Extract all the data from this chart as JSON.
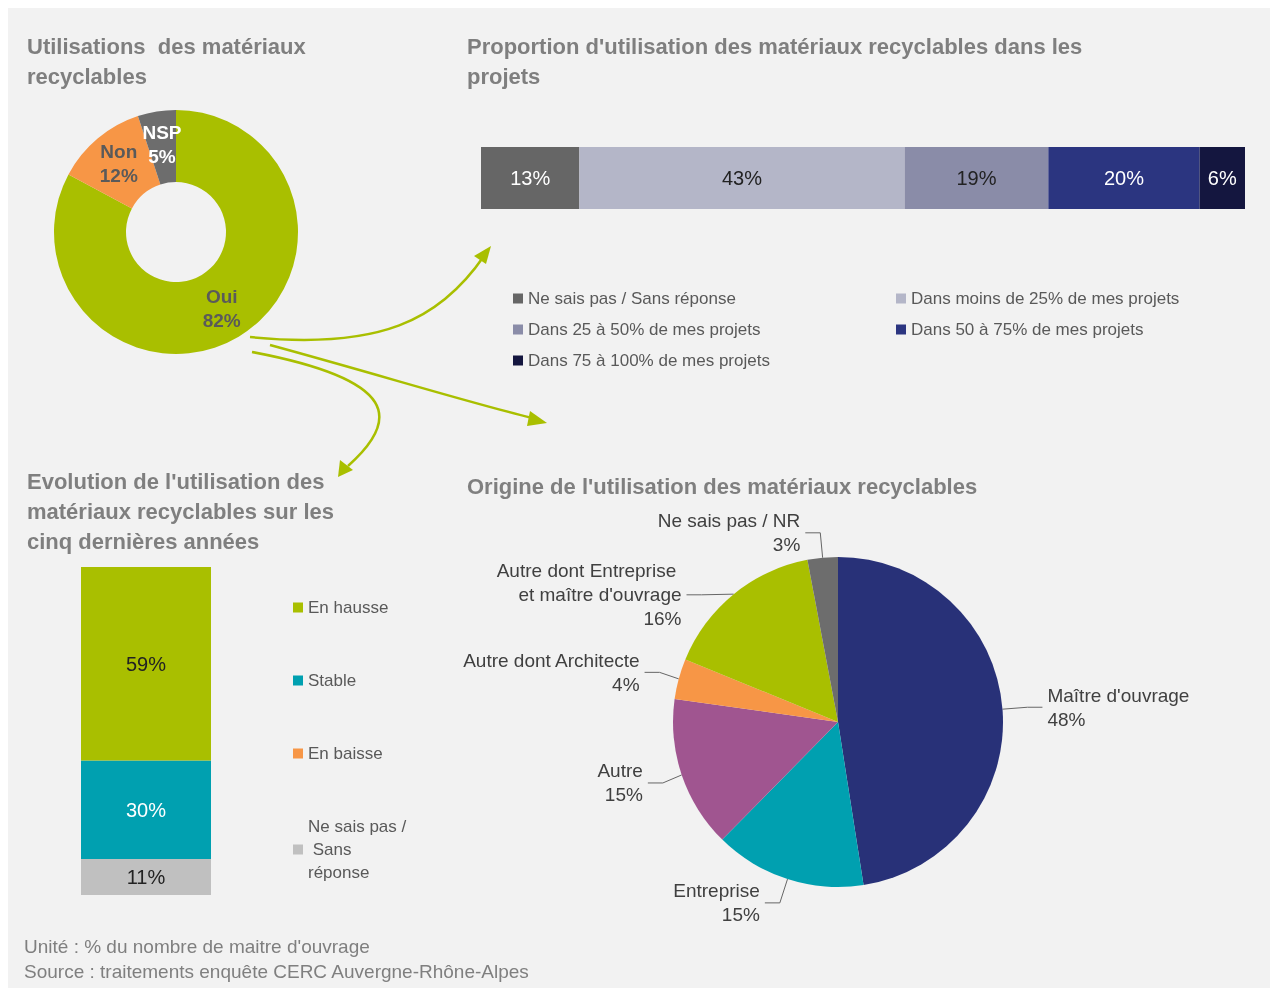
{
  "chart_data": [
    {
      "type": "donut",
      "title": "Utilisations  des matériaux recyclables",
      "categories": [
        "Oui",
        "Non",
        "NSP"
      ],
      "values": [
        82,
        12,
        5
      ],
      "colors": [
        "#a9bf00",
        "#f79646",
        "#6d6d6d"
      ],
      "value_labels": [
        "82%",
        "12%",
        "5%"
      ]
    },
    {
      "type": "bar",
      "title": "Proportion d'utilisation des matériaux recyclables dans les projets",
      "orientation": "horizontal",
      "stacked": true,
      "categories": [
        null
      ],
      "xlim": [
        0,
        101
      ],
      "tick_labels": false,
      "legend": "bottom",
      "series": [
        {
          "name": "Ne sais pas / Sans réponse",
          "color": "#666666",
          "values": [
            13
          ],
          "value_labels": [
            "13%"
          ]
        },
        {
          "name": "Dans moins de 25% de mes projets",
          "color": "#b4b6c8",
          "values": [
            43
          ],
          "value_labels": [
            "43%"
          ]
        },
        {
          "name": "Dans 25 à 50% de mes projets",
          "color": "#8a8ca8",
          "values": [
            19
          ],
          "value_labels": [
            "19%"
          ]
        },
        {
          "name": "Dans 50 à 75% de mes projets",
          "color": "#2b3580",
          "values": [
            20
          ],
          "value_labels": [
            "20%"
          ]
        },
        {
          "name": "Dans 75 à 100% de mes projets",
          "color": "#14163f",
          "values": [
            6
          ],
          "value_labels": [
            "6%"
          ]
        }
      ]
    },
    {
      "type": "bar",
      "title": "Evolution de l'utilisation des matériaux recyclables sur les cinq dernières années",
      "stacked": true,
      "categories": [
        null
      ],
      "ylim": [
        0,
        100
      ],
      "tick_labels": false,
      "legend": "right",
      "series": [
        {
          "name": "Ne sais pas / Sans réponse",
          "color": "#c0c0c0",
          "values": [
            11
          ],
          "value_labels": [
            "11%"
          ]
        },
        {
          "name": "En baisse",
          "color": "#f79646",
          "values": [
            0
          ],
          "value_labels": [
            null
          ]
        },
        {
          "name": "Stable",
          "color": "#00a0b0",
          "values": [
            30
          ],
          "value_labels": [
            "30%"
          ]
        },
        {
          "name": "En hausse",
          "color": "#a9bf00",
          "values": [
            59
          ],
          "value_labels": [
            "59%"
          ]
        }
      ]
    },
    {
      "type": "pie",
      "title": "Origine de l'utilisation des matériaux recyclables",
      "categories": [
        "Maître d'ouvrage",
        "Entreprise",
        "Autre",
        "Autre dont Architecte",
        "Autre dont Entreprise et maître d'ouvrage",
        "Ne sais pas / NR"
      ],
      "values": [
        48,
        15,
        15,
        4,
        16,
        3
      ],
      "colors": [
        "#283178",
        "#00a0b0",
        "#a05590",
        "#f79646",
        "#a9bf00",
        "#6d6d6d"
      ],
      "value_labels": [
        "48%",
        "15%",
        "15%",
        "4%",
        "16%",
        "3%"
      ],
      "annotations": [
        "Unité : % du nombre de maitre d'ouvrage",
        "Source : traitements enquête CERC Auvergne-Rhône-Alpes"
      ]
    }
  ]
}
